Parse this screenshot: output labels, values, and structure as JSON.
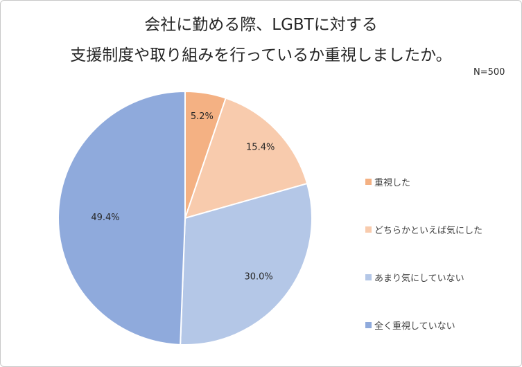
{
  "chart_data": {
    "type": "pie",
    "title_line1": "会社に勤める際、LGBTに対する",
    "title_line2": "支援制度や取り組みを行っているか重視しましたか。",
    "sample_size": "N=500",
    "legend_position": "right",
    "slices": [
      {
        "label": "重視した",
        "value": 5.2,
        "value_label": "5.2%",
        "color": "#F4B183"
      },
      {
        "label": "どちらかといえば気にした",
        "value": 15.4,
        "value_label": "15.4%",
        "color": "#F8CBAD"
      },
      {
        "label": "あまり気にしていない",
        "value": 30.0,
        "value_label": "30.0%",
        "color": "#B4C7E7"
      },
      {
        "label": "全く重視していない",
        "value": 49.4,
        "value_label": "49.4%",
        "color": "#8FAADC"
      }
    ]
  }
}
